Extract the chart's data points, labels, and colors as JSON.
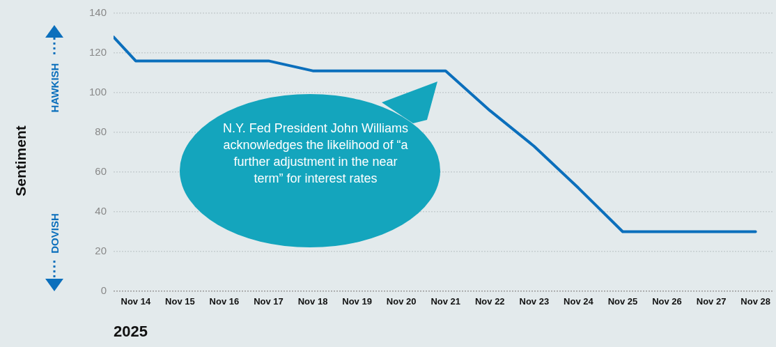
{
  "chart_data": {
    "type": "line",
    "ylabel": "Sentiment",
    "xlabel": "2025",
    "x": [
      "2025-11-13T12:00",
      "2025-11-14",
      "2025-11-15",
      "2025-11-16",
      "2025-11-17",
      "2025-11-18",
      "2025-11-19",
      "2025-11-20",
      "2025-11-21",
      "2025-11-22",
      "2025-11-23",
      "2025-11-24",
      "2025-11-25",
      "2025-11-26",
      "2025-11-27",
      "2025-11-28"
    ],
    "series": [
      {
        "color": "#0b6fbc",
        "values": [
          128,
          116,
          116,
          116,
          116,
          111,
          111,
          111,
          111,
          91,
          73,
          52,
          30,
          30,
          30,
          30
        ]
      }
    ],
    "xlim": [
      "2025-11-13T12:00",
      "2025-11-28T10:00"
    ],
    "xticks": [
      {
        "value": "2025-11-14",
        "label": "Nov 14"
      },
      {
        "value": "2025-11-15",
        "label": "Nov 15"
      },
      {
        "value": "2025-11-16",
        "label": "Nov 16"
      },
      {
        "value": "2025-11-17",
        "label": "Nov 17"
      },
      {
        "value": "2025-11-18",
        "label": "Nov 18"
      },
      {
        "value": "2025-11-19",
        "label": "Nov 19"
      },
      {
        "value": "2025-11-20",
        "label": "Nov 20"
      },
      {
        "value": "2025-11-21",
        "label": "Nov 21"
      },
      {
        "value": "2025-11-22",
        "label": "Nov 22"
      },
      {
        "value": "2025-11-23",
        "label": "Nov 23"
      },
      {
        "value": "2025-11-24",
        "label": "Nov 24"
      },
      {
        "value": "2025-11-25",
        "label": "Nov 25"
      },
      {
        "value": "2025-11-26",
        "label": "Nov 26"
      },
      {
        "value": "2025-11-27",
        "label": "Nov 27"
      },
      {
        "value": "2025-11-28",
        "label": "Nov 28"
      }
    ],
    "ylim": [
      0,
      140
    ],
    "yticks": [
      0,
      20,
      40,
      60,
      80,
      100,
      120,
      140
    ],
    "grid": "y",
    "legend": false,
    "marker": "none",
    "line_style": "solid",
    "annotations": [
      "N.Y. Fed President John Williams acknowledges the likelihood of “a further adjustment in the near term” for interest rates",
      "HAWKISH",
      "DOVISH"
    ]
  }
}
